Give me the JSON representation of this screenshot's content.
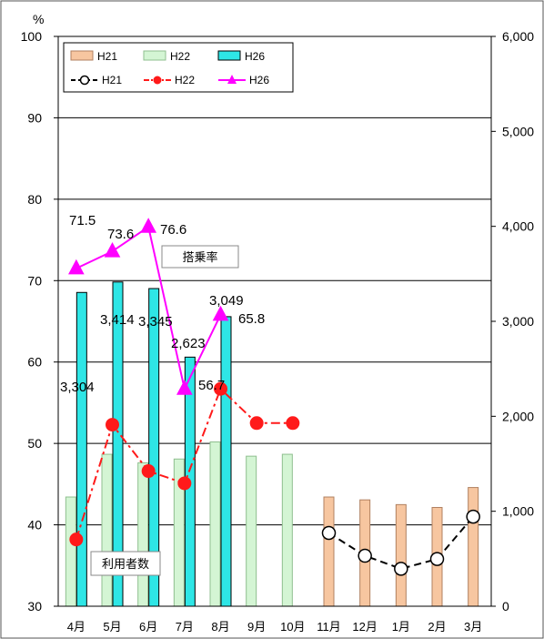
{
  "chart_data": {
    "type": "bar",
    "y_unit_label": "%",
    "categories": [
      "4月",
      "5月",
      "6月",
      "7月",
      "8月",
      "9月",
      "10月",
      "11月",
      "12月",
      "1月",
      "2月",
      "3月"
    ],
    "left_axis": {
      "range": [
        30,
        100
      ],
      "ticks": [
        "30",
        "40",
        "50",
        "60",
        "70",
        "80",
        "90",
        "100"
      ]
    },
    "right_axis": {
      "range": [
        0,
        6000
      ],
      "ticks": [
        "0",
        "1,000",
        "2,000",
        "3,000",
        "4,000",
        "5,000",
        "6,000"
      ]
    },
    "grid": "horizontal",
    "legend_position": "top-left",
    "bar_series": [
      {
        "name": "H21",
        "axis": "right",
        "color": "#f7c6a0",
        "stroke": "#b08060",
        "values": [
          null,
          null,
          null,
          null,
          null,
          null,
          null,
          1150,
          1120,
          1070,
          1040,
          1250
        ]
      },
      {
        "name": "H22",
        "axis": "right",
        "color": "#d4f5d4",
        "stroke": "#8fbf8f",
        "values": [
          1150,
          1600,
          1510,
          1550,
          1730,
          1580,
          1600,
          null,
          null,
          null,
          null,
          null
        ]
      },
      {
        "name": "H26",
        "axis": "right",
        "color": "#2ee6e6",
        "stroke": "#000000",
        "values": [
          3304,
          3414,
          3345,
          2623,
          3049,
          null,
          null,
          null,
          null,
          null,
          null,
          null
        ],
        "labels": [
          "3,304",
          "3,414",
          "3,345",
          "2,623",
          "3,049"
        ]
      }
    ],
    "line_series": [
      {
        "name": "H21",
        "axis": "left",
        "color": "#000000",
        "marker": "circle-open",
        "dash": "8,5",
        "values": [
          null,
          null,
          null,
          null,
          null,
          null,
          null,
          39.0,
          36.2,
          34.6,
          35.8,
          41.0
        ]
      },
      {
        "name": "H22",
        "axis": "left",
        "color": "#ff1a1a",
        "marker": "circle-filled",
        "dash": "10,4,3,4",
        "values": [
          38.2,
          52.3,
          46.6,
          45.1,
          56.7,
          52.5,
          52.5,
          null,
          null,
          null,
          null,
          null
        ]
      },
      {
        "name": "H26",
        "axis": "left",
        "color": "#ff00ff",
        "marker": "triangle",
        "dash": "",
        "values": [
          71.5,
          73.6,
          76.6,
          56.7,
          65.8,
          null,
          null,
          null,
          null,
          null,
          null,
          null
        ],
        "labels": [
          "71.5",
          "73.6",
          "76.6",
          "56.7",
          "65.8"
        ]
      }
    ],
    "annotations": [
      "搭乗率",
      "利用者数"
    ]
  }
}
